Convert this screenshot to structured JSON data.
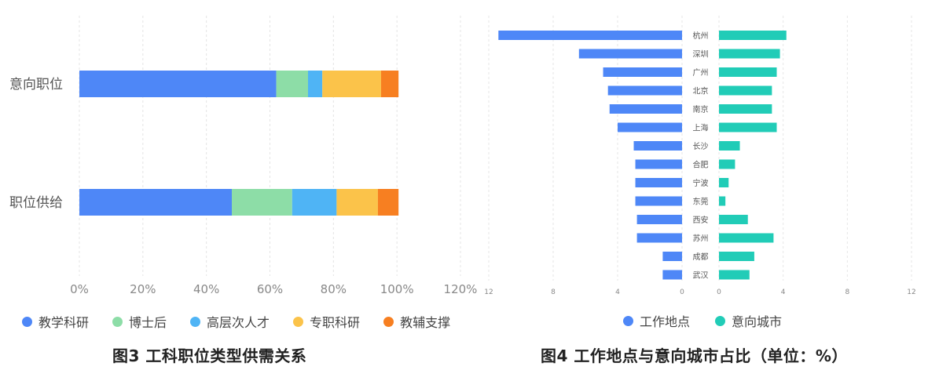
{
  "left": {
    "caption": "图3 工科职位类型供需关系",
    "chart_data": {
      "type": "bar",
      "orientation": "horizontal",
      "stacked": true,
      "categories": [
        "意向职位",
        "职位供给"
      ],
      "series": [
        {
          "name": "教学科研",
          "color": "#4e87f7",
          "values": [
            62,
            48
          ]
        },
        {
          "name": "博士后",
          "color": "#8ddda7",
          "values": [
            10,
            19
          ]
        },
        {
          "name": "高层次人才",
          "color": "#4fb4f5",
          "values": [
            4.5,
            14
          ]
        },
        {
          "name": "专职科研",
          "color": "#fbc34a",
          "values": [
            18.5,
            13
          ]
        },
        {
          "name": "教辅支撑",
          "color": "#f77f21",
          "values": [
            5.5,
            6.5
          ]
        }
      ],
      "x_ticks": [
        "0%",
        "20%",
        "40%",
        "60%",
        "80%",
        "100%",
        "120%"
      ],
      "xlim": [
        0,
        120
      ],
      "grid": true,
      "legend_position": "bottom"
    }
  },
  "right": {
    "caption": "图4 工作地点与意向城市占比（单位：%）",
    "chart_data": {
      "type": "bar",
      "orientation": "horizontal",
      "layout": "butterfly",
      "categories": [
        "杭州",
        "深圳",
        "广州",
        "北京",
        "南京",
        "上海",
        "长沙",
        "合肥",
        "宁波",
        "东莞",
        "西安",
        "苏州",
        "成都",
        "武汉"
      ],
      "series": [
        {
          "name": "工作地点",
          "color": "#4e87f7",
          "side": "left",
          "values": [
            11.4,
            6.4,
            4.9,
            4.6,
            4.5,
            4.0,
            3.0,
            2.9,
            2.9,
            2.9,
            2.8,
            2.8,
            1.2,
            1.2
          ]
        },
        {
          "name": "意向城市",
          "color": "#21ccb7",
          "side": "right",
          "values": [
            4.2,
            3.8,
            3.6,
            3.3,
            3.3,
            3.6,
            1.3,
            1.0,
            0.6,
            0.4,
            1.8,
            3.4,
            2.2,
            1.9
          ]
        }
      ],
      "left_ticks": [
        "12",
        "8",
        "4",
        "0"
      ],
      "right_ticks": [
        "0",
        "4",
        "8",
        "12"
      ],
      "xlim": [
        0,
        12
      ],
      "grid": true,
      "legend_position": "bottom"
    }
  }
}
